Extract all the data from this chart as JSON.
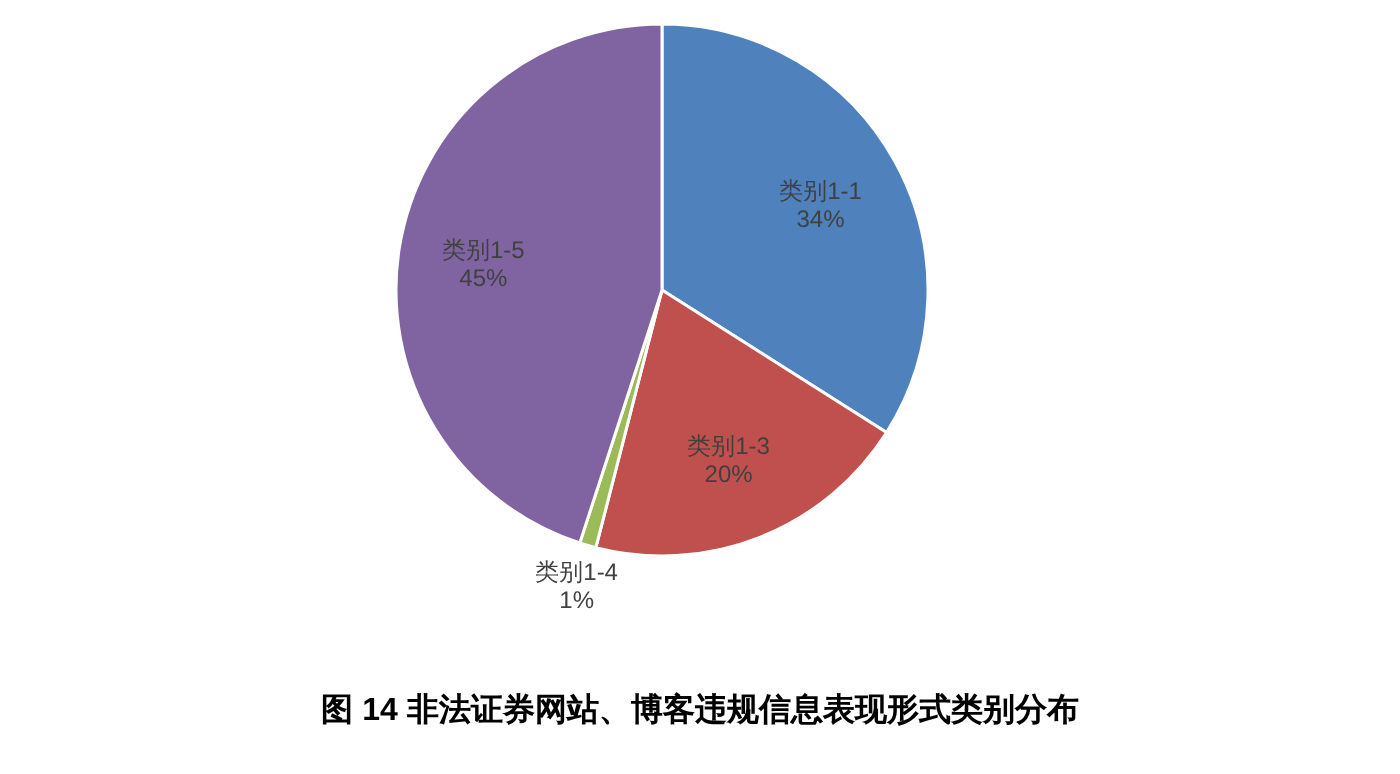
{
  "chart_data": {
    "type": "pie",
    "title": "图 14  非法证券网站、博客违规信息表现形式类别分布",
    "categories": [
      "类别1-1",
      "类别1-3",
      "类别1-4",
      "类别1-5"
    ],
    "values": [
      34,
      20,
      1,
      45
    ],
    "colors": [
      "#4f81bd",
      "#c0504d",
      "#9bbb59",
      "#8064a2"
    ],
    "value_labels": [
      "34%",
      "20%",
      "1%",
      "45%"
    ]
  }
}
